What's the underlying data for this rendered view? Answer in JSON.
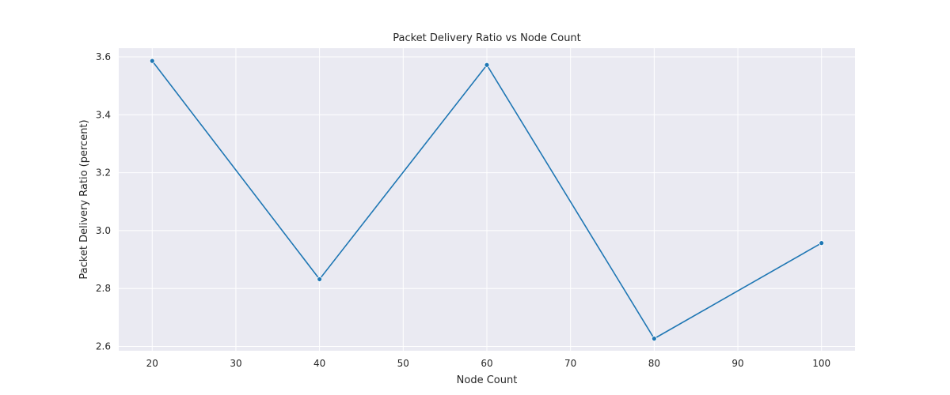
{
  "chart_data": {
    "type": "line",
    "title": "Packet Delivery Ratio vs Node Count",
    "xlabel": "Node Count",
    "ylabel": "Packet Delivery Ratio (percent)",
    "x": [
      20,
      40,
      60,
      80,
      100
    ],
    "series": [
      {
        "values": [
          3.586,
          2.832,
          3.572,
          2.627,
          2.957
        ]
      }
    ],
    "xlim": [
      16,
      104
    ],
    "ylim": [
      2.585,
      3.63
    ],
    "xticks": [
      20,
      30,
      40,
      50,
      60,
      70,
      80,
      90,
      100
    ],
    "yticks": [
      2.6,
      2.8,
      3.0,
      3.2,
      3.4,
      3.6
    ],
    "ytick_labels": [
      "2.6",
      "2.8",
      "3.0",
      "3.2",
      "3.4",
      "3.6"
    ],
    "grid": true,
    "colors": {
      "series": "#1f77b4",
      "plot_background": "#eaeaf2",
      "grid": "#ffffff"
    }
  }
}
